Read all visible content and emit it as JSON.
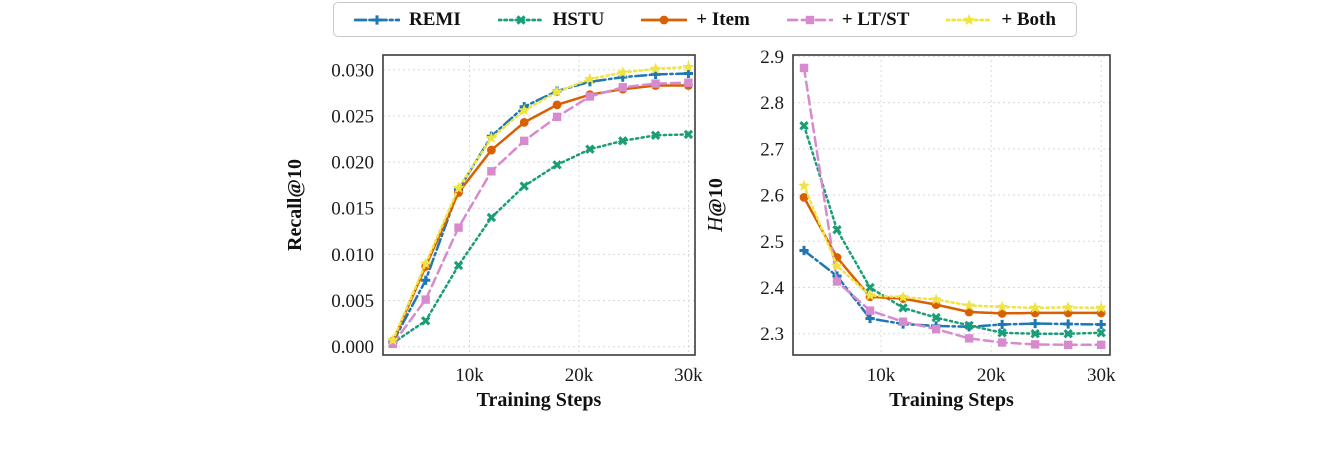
{
  "figure": {
    "background": "#ffffff",
    "grid_color": "#d8d8d8",
    "spine_color": "#3c3c3c",
    "tick_text_color": "#1a1a1a"
  },
  "legend": {
    "position": "top-outside",
    "items": [
      {
        "label": "REMI",
        "color": "#1f77b4",
        "line_style": "dashdot",
        "marker": "plus"
      },
      {
        "label": "HSTU",
        "color": "#1b9e77",
        "line_style": "dotted",
        "marker": "x"
      },
      {
        "label": "+ Item",
        "color": "#d95f02",
        "line_style": "solid",
        "marker": "circle"
      },
      {
        "label": "+ LT/ST",
        "color": "#d78bce",
        "line_style": "dashed",
        "marker": "square"
      },
      {
        "label": "+ Both",
        "color": "#f0e442",
        "line_style": "dotted",
        "marker": "star"
      }
    ]
  },
  "chart_data": [
    {
      "id": "recall",
      "type": "line",
      "title": "",
      "xlabel": "Training Steps",
      "ylabel": "Recall@10",
      "ylabel_style": "bold",
      "grid": true,
      "x": [
        3000,
        6000,
        9000,
        12000,
        15000,
        18000,
        21000,
        24000,
        27000,
        30000
      ],
      "xlim": [
        2100,
        30600
      ],
      "ylim": [
        -0.0009,
        0.0316
      ],
      "xticks": [
        {
          "value": 10000,
          "label": "10k"
        },
        {
          "value": 20000,
          "label": "20k"
        },
        {
          "value": 30000,
          "label": "30k"
        }
      ],
      "yticks": [
        {
          "value": 0.0,
          "label": "0.000"
        },
        {
          "value": 0.005,
          "label": "0.005"
        },
        {
          "value": 0.01,
          "label": "0.010"
        },
        {
          "value": 0.015,
          "label": "0.015"
        },
        {
          "value": 0.02,
          "label": "0.020"
        },
        {
          "value": 0.025,
          "label": "0.025"
        },
        {
          "value": 0.03,
          "label": "0.030"
        }
      ],
      "series": [
        {
          "name": "REMI",
          "color": "#1f77b4",
          "line_style": "dashdot",
          "marker": "plus",
          "values": [
            0.0005,
            0.0072,
            0.017,
            0.0228,
            0.026,
            0.0277,
            0.0287,
            0.0292,
            0.0295,
            0.0296
          ]
        },
        {
          "name": "HSTU",
          "color": "#1b9e77",
          "line_style": "dotted",
          "marker": "x",
          "values": [
            0.0004,
            0.0028,
            0.0088,
            0.014,
            0.0174,
            0.0197,
            0.0214,
            0.0223,
            0.0229,
            0.023
          ]
        },
        {
          "name": "+ Item",
          "color": "#d95f02",
          "line_style": "solid",
          "marker": "circle",
          "values": [
            0.0006,
            0.0087,
            0.0167,
            0.0213,
            0.0243,
            0.0262,
            0.0273,
            0.0279,
            0.0283,
            0.0283
          ]
        },
        {
          "name": "+ LT/ST",
          "color": "#d78bce",
          "line_style": "dashed",
          "marker": "square",
          "values": [
            0.0003,
            0.0051,
            0.0129,
            0.019,
            0.0223,
            0.0249,
            0.0271,
            0.0281,
            0.0285,
            0.0286
          ]
        },
        {
          "name": "+ Both",
          "color": "#f0e442",
          "line_style": "dotted",
          "marker": "star",
          "values": [
            0.0007,
            0.009,
            0.0172,
            0.0226,
            0.0256,
            0.0276,
            0.029,
            0.0297,
            0.0301,
            0.0303
          ]
        }
      ]
    },
    {
      "id": "h10",
      "type": "line",
      "title": "",
      "xlabel": "Training Steps",
      "ylabel": "H@10",
      "ylabel_style": "math-italic-first",
      "grid": true,
      "x": [
        3000,
        6000,
        9000,
        12000,
        15000,
        18000,
        21000,
        24000,
        27000,
        30000
      ],
      "xlim": [
        2000,
        30800
      ],
      "ylim": [
        2.254,
        2.903
      ],
      "xticks": [
        {
          "value": 10000,
          "label": "10k"
        },
        {
          "value": 20000,
          "label": "20k"
        },
        {
          "value": 30000,
          "label": "30k"
        }
      ],
      "yticks": [
        {
          "value": 2.3,
          "label": "2.3"
        },
        {
          "value": 2.4,
          "label": "2.4"
        },
        {
          "value": 2.5,
          "label": "2.5"
        },
        {
          "value": 2.6,
          "label": "2.6"
        },
        {
          "value": 2.7,
          "label": "2.7"
        },
        {
          "value": 2.8,
          "label": "2.8"
        },
        {
          "value": 2.9,
          "label": "2.9"
        }
      ],
      "series": [
        {
          "name": "REMI",
          "color": "#1f77b4",
          "line_style": "dashdot",
          "marker": "plus",
          "values": [
            2.48,
            2.425,
            2.333,
            2.321,
            2.317,
            2.315,
            2.32,
            2.322,
            2.321,
            2.32
          ]
        },
        {
          "name": "HSTU",
          "color": "#1b9e77",
          "line_style": "dotted",
          "marker": "x",
          "values": [
            2.75,
            2.525,
            2.4,
            2.356,
            2.335,
            2.318,
            2.302,
            2.3,
            2.3,
            2.302
          ]
        },
        {
          "name": "+ Item",
          "color": "#d95f02",
          "line_style": "solid",
          "marker": "circle",
          "values": [
            2.595,
            2.465,
            2.38,
            2.376,
            2.363,
            2.347,
            2.344,
            2.345,
            2.345,
            2.345
          ]
        },
        {
          "name": "+ LT/ST",
          "color": "#d78bce",
          "line_style": "dashed",
          "marker": "square",
          "values": [
            2.875,
            2.413,
            2.35,
            2.326,
            2.31,
            2.29,
            2.281,
            2.277,
            2.276,
            2.276
          ]
        },
        {
          "name": "+ Both",
          "color": "#f0e442",
          "line_style": "dotted",
          "marker": "star",
          "values": [
            2.62,
            2.447,
            2.383,
            2.379,
            2.374,
            2.361,
            2.358,
            2.356,
            2.357,
            2.356
          ]
        }
      ]
    }
  ]
}
